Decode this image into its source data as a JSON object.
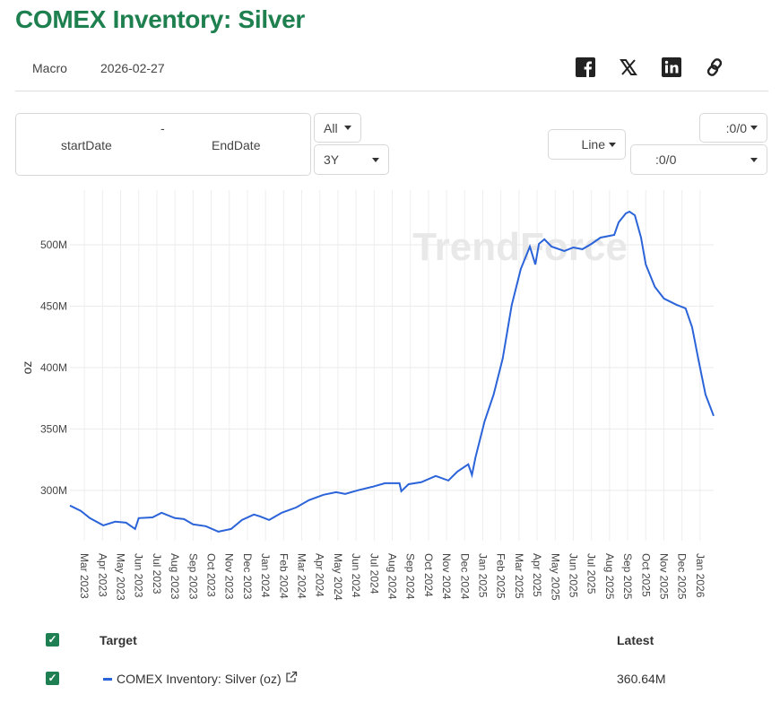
{
  "header": {
    "title": "COMEX Inventory: Silver",
    "category": "Macro",
    "date": "2026-02-27"
  },
  "share": {
    "icons": [
      "facebook-icon",
      "x-icon",
      "linkedin-icon",
      "link-icon"
    ]
  },
  "controls": {
    "start_placeholder": "startDate",
    "dash": "-",
    "end_placeholder": "EndDate",
    "range_type": "All",
    "period": "3Y",
    "chart_type": "Line",
    "axis_right_top": ":0/0",
    "axis_right_bottom": ":0/0"
  },
  "watermark": "TrendForce",
  "chart_data": {
    "type": "line",
    "title": "COMEX Inventory: Silver",
    "ylabel": "oz",
    "xlabel": "",
    "x_unit": "months since Mar 2023",
    "ylim": [
      259,
      544.5
    ],
    "xlim": [
      -0.8,
      34.75
    ],
    "yticks": [
      300,
      350,
      400,
      450,
      500
    ],
    "ytick_labels": [
      "300M",
      "350M",
      "400M",
      "450M",
      "500M"
    ],
    "xtick_labels": [
      "Mar 2023",
      "Apr 2023",
      "May 2023",
      "Jun 2023",
      "Jul 2023",
      "Aug 2023",
      "Sep 2023",
      "Oct 2023",
      "Nov 2023",
      "Dec 2023",
      "Jan 2024",
      "Feb 2024",
      "Mar 2024",
      "Apr 2024",
      "May 2024",
      "Jun 2024",
      "Jul 2024",
      "Aug 2024",
      "Sep 2024",
      "Oct 2024",
      "Nov 2024",
      "Dec 2024",
      "Jan 2025",
      "Feb 2025",
      "Mar 2025",
      "Apr 2025",
      "May 2025",
      "Jun 2025",
      "Jul 2025",
      "Aug 2025",
      "Sep 2025",
      "Oct 2025",
      "Nov 2025",
      "Dec 2025",
      "Jan 2026"
    ],
    "grid": true,
    "series": [
      {
        "name": "COMEX Inventory: Silver (oz)",
        "color": "#2b63d9",
        "points": [
          [
            -0.8,
            287.6
          ],
          [
            -0.2,
            283.3
          ],
          [
            0.3,
            277.4
          ],
          [
            1.04,
            271.5
          ],
          [
            1.7,
            274.5
          ],
          [
            2.3,
            273.7
          ],
          [
            2.8,
            268.6
          ],
          [
            3.0,
            277.4
          ],
          [
            3.76,
            278
          ],
          [
            4.26,
            281.8
          ],
          [
            5.0,
            277.4
          ],
          [
            5.5,
            276.6
          ],
          [
            6.0,
            272.3
          ],
          [
            6.7,
            270.8
          ],
          [
            7.4,
            266.4
          ],
          [
            8.1,
            268.6
          ],
          [
            8.7,
            275.9
          ],
          [
            9.36,
            280.3
          ],
          [
            9.7,
            278.8
          ],
          [
            10.2,
            275.9
          ],
          [
            10.9,
            281.8
          ],
          [
            11.7,
            286.1
          ],
          [
            12.4,
            292
          ],
          [
            13.2,
            296.4
          ],
          [
            13.9,
            298.5
          ],
          [
            14.4,
            297.1
          ],
          [
            15.1,
            300
          ],
          [
            15.9,
            302.9
          ],
          [
            16.6,
            305.8
          ],
          [
            17.4,
            305.8
          ],
          [
            17.5,
            299.3
          ],
          [
            17.9,
            305
          ],
          [
            18.6,
            306.6
          ],
          [
            19.4,
            311.7
          ],
          [
            20.1,
            308
          ],
          [
            20.6,
            315.3
          ],
          [
            21.2,
            321.2
          ],
          [
            21.4,
            312.5
          ],
          [
            21.6,
            327
          ],
          [
            22.1,
            356.2
          ],
          [
            22.6,
            378
          ],
          [
            23.1,
            407.3
          ],
          [
            23.6,
            451
          ],
          [
            24.1,
            480.3
          ],
          [
            24.6,
            498.5
          ],
          [
            24.9,
            484
          ],
          [
            25.1,
            500.7
          ],
          [
            25.4,
            504.4
          ],
          [
            25.8,
            498.5
          ],
          [
            26.5,
            494.9
          ],
          [
            27.0,
            497.8
          ],
          [
            27.5,
            496.4
          ],
          [
            28.0,
            500.7
          ],
          [
            28.5,
            505.8
          ],
          [
            29.26,
            508
          ],
          [
            29.5,
            518.2
          ],
          [
            29.9,
            525.5
          ],
          [
            30.1,
            527
          ],
          [
            30.4,
            524
          ],
          [
            30.74,
            505.8
          ],
          [
            31.0,
            483.9
          ],
          [
            31.5,
            465.7
          ],
          [
            32,
            456.2
          ],
          [
            32.7,
            451.1
          ],
          [
            33.2,
            448.2
          ],
          [
            33.56,
            432.8
          ],
          [
            33.9,
            407.3
          ],
          [
            34.3,
            378
          ],
          [
            34.75,
            360.64
          ]
        ]
      }
    ]
  },
  "legend": {
    "header_target": "Target",
    "header_latest": "Latest",
    "rows": [
      {
        "label": "COMEX Inventory: Silver (oz)",
        "latest": "360.64M",
        "color": "#2b63d9"
      }
    ]
  }
}
